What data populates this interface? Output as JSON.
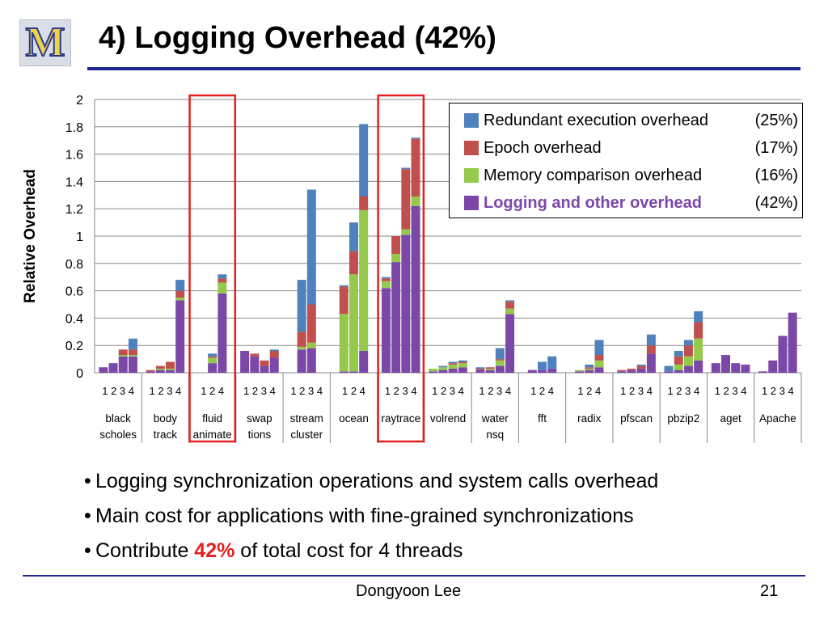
{
  "slide": {
    "title": "4) Logging Overhead (42%)",
    "logo_letter": "M",
    "author": "Dongyoon Lee",
    "page_number": "21",
    "bullets": [
      {
        "text": "Logging synchronization operations and system calls overhead"
      },
      {
        "text": "Main cost for applications with fine-grained synchronizations"
      },
      {
        "pre": "Contribute ",
        "highlight": "42%",
        "post": " of total cost for 4 threads"
      }
    ]
  },
  "chart_data": {
    "type": "bar",
    "stacked": true,
    "ylabel": "Relative Overhead",
    "ylim": [
      0,
      2
    ],
    "yticks": [
      "0",
      "0.2",
      "0.4",
      "0.6",
      "0.8",
      "1",
      "1.2",
      "1.4",
      "1.6",
      "1.8",
      "2"
    ],
    "grid": true,
    "legend_position": "top-right",
    "series": [
      {
        "key": "logging",
        "name": "Logging and other overhead",
        "pct": "(42%)",
        "color": "#7b48a8",
        "bold": true
      },
      {
        "key": "memory",
        "name": "Memory comparison overhead",
        "pct": "(16%)",
        "color": "#94c94b"
      },
      {
        "key": "epoch",
        "name": "Epoch overhead",
        "pct": "(17%)",
        "color": "#c0504d"
      },
      {
        "key": "redundant",
        "name": "Redundant execution overhead",
        "pct": "(25%)",
        "color": "#4f81bd"
      }
    ],
    "legend_order": [
      "redundant",
      "epoch",
      "memory",
      "logging"
    ],
    "highlighted_groups": [
      "fluid animate",
      "raytrace"
    ],
    "highlight_color": "#e32020",
    "groups": [
      {
        "name": [
          "black",
          "scholes"
        ],
        "threads": [
          "1",
          "2",
          "3",
          "4"
        ],
        "bars": [
          [
            0.04,
            0,
            0,
            0
          ],
          [
            0.07,
            0,
            0,
            0
          ],
          [
            0.12,
            0.01,
            0.04,
            0
          ],
          [
            0.12,
            0.01,
            0.04,
            0.08
          ]
        ]
      },
      {
        "name": [
          "body",
          "track"
        ],
        "threads": [
          "1",
          "2",
          "3",
          "4"
        ],
        "bars": [
          [
            0.01,
            0,
            0.01,
            0
          ],
          [
            0.02,
            0.01,
            0.02,
            0
          ],
          [
            0.02,
            0.01,
            0.05,
            0
          ],
          [
            0.53,
            0.02,
            0.05,
            0.08
          ]
        ]
      },
      {
        "name": [
          "fluid",
          "animate"
        ],
        "threads": [
          "1",
          "2",
          "4"
        ],
        "bars": [
          [
            0,
            0,
            0,
            0
          ],
          [
            0.07,
            0.04,
            0.01,
            0.02
          ],
          [
            0.58,
            0.08,
            0.03,
            0.03
          ]
        ]
      },
      {
        "name": [
          "swap",
          "tions"
        ],
        "threads": [
          "1",
          "2",
          "3",
          "4"
        ],
        "bars": [
          [
            0.16,
            0,
            0,
            0
          ],
          [
            0.12,
            0,
            0.02,
            0
          ],
          [
            0.05,
            0,
            0.04,
            0
          ],
          [
            0.11,
            0,
            0.05,
            0.01
          ]
        ]
      },
      {
        "name": [
          "stream",
          "cluster"
        ],
        "threads": [
          "1",
          "2",
          "3",
          "4"
        ],
        "bars": [
          [
            0,
            0,
            0,
            0
          ],
          [
            0.17,
            0.02,
            0.11,
            0.38
          ],
          [
            0.18,
            0.04,
            0.28,
            0.84
          ],
          [
            0,
            0,
            0,
            0
          ]
        ]
      },
      {
        "name": [
          "ocean"
        ],
        "threads": [
          "1",
          "2",
          "4"
        ],
        "bars": [
          [
            0.01,
            0.42,
            0.2,
            0.01
          ],
          [
            0.01,
            0.71,
            0.17,
            0.21
          ],
          [
            0.16,
            1.03,
            0.1,
            0.53
          ]
        ]
      },
      {
        "name": [
          "raytrace"
        ],
        "threads": [
          "1",
          "2",
          "3",
          "4"
        ],
        "bars": [
          [
            0.62,
            0.05,
            0.02,
            0.01
          ],
          [
            0.81,
            0.06,
            0.13,
            0
          ],
          [
            1.01,
            0.04,
            0.44,
            0.01
          ],
          [
            1.22,
            0.07,
            0.42,
            0.01
          ]
        ]
      },
      {
        "name": [
          "volrend"
        ],
        "threads": [
          "1",
          "2",
          "3",
          "4"
        ],
        "bars": [
          [
            0.01,
            0.02,
            0,
            0
          ],
          [
            0.02,
            0.02,
            0,
            0.01
          ],
          [
            0.03,
            0.03,
            0.01,
            0.01
          ],
          [
            0.04,
            0.03,
            0.01,
            0.01
          ]
        ]
      },
      {
        "name": [
          "water",
          "nsq"
        ],
        "threads": [
          "1",
          "2",
          "3",
          "4"
        ],
        "bars": [
          [
            0.02,
            0,
            0.01,
            0.01
          ],
          [
            0.02,
            0.01,
            0.01,
            0
          ],
          [
            0.05,
            0.04,
            0.01,
            0.08
          ],
          [
            0.43,
            0.04,
            0.05,
            0.01
          ]
        ]
      },
      {
        "name": [
          "fft"
        ],
        "threads": [
          "1",
          "2",
          "4"
        ],
        "bars": [
          [
            0.02,
            0,
            0,
            0
          ],
          [
            0.02,
            0,
            0,
            0.06
          ],
          [
            0.03,
            0,
            0,
            0.09
          ]
        ]
      },
      {
        "name": [
          "radix"
        ],
        "threads": [
          "1",
          "2",
          "4"
        ],
        "bars": [
          [
            0.01,
            0.01,
            0,
            0
          ],
          [
            0.02,
            0.01,
            0.01,
            0.02
          ],
          [
            0.04,
            0.05,
            0.04,
            0.11
          ]
        ]
      },
      {
        "name": [
          "pfscan"
        ],
        "threads": [
          "1",
          "2",
          "3",
          "4"
        ],
        "bars": [
          [
            0.01,
            0,
            0.01,
            0
          ],
          [
            0.02,
            0,
            0.01,
            0
          ],
          [
            0.03,
            0,
            0.02,
            0.01
          ],
          [
            0.14,
            0,
            0.06,
            0.08
          ]
        ]
      },
      {
        "name": [
          "pbzip2"
        ],
        "threads": [
          "1",
          "2",
          "3",
          "4"
        ],
        "bars": [
          [
            0.01,
            0,
            0,
            0.04
          ],
          [
            0.02,
            0.04,
            0.06,
            0.04
          ],
          [
            0.05,
            0.07,
            0.08,
            0.04
          ],
          [
            0.09,
            0.16,
            0.12,
            0.08
          ]
        ]
      },
      {
        "name": [
          "aget"
        ],
        "threads": [
          "1",
          "2",
          "3",
          "4"
        ],
        "bars": [
          [
            0.07,
            0,
            0,
            0
          ],
          [
            0.13,
            0,
            0,
            0
          ],
          [
            0.07,
            0,
            0,
            0
          ],
          [
            0.06,
            0,
            0,
            0
          ]
        ]
      },
      {
        "name": [
          "Apache"
        ],
        "threads": [
          "1",
          "2",
          "3",
          "4"
        ],
        "bars": [
          [
            0.01,
            0,
            0,
            0
          ],
          [
            0.09,
            0,
            0,
            0
          ],
          [
            0.27,
            0,
            0,
            0
          ],
          [
            0.44,
            0,
            0,
            0
          ]
        ]
      }
    ]
  }
}
